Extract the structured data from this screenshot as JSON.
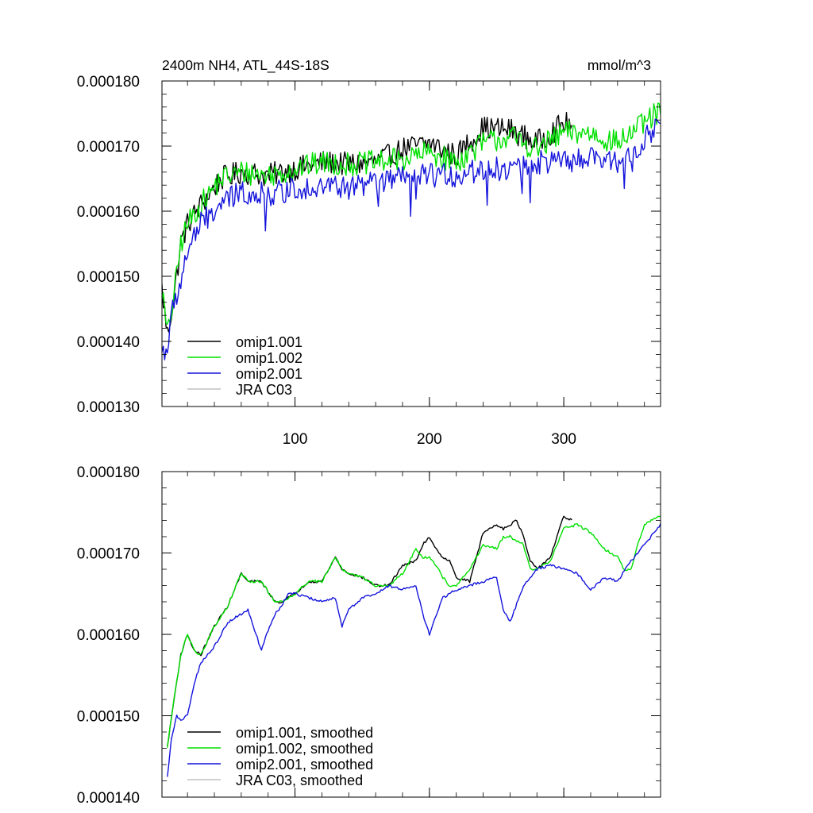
{
  "chart_data": [
    {
      "type": "line",
      "title": "2400m NH4, ATL_44S-18S",
      "units": "mmol/m^3",
      "xlim": [
        1,
        372
      ],
      "ylim": [
        0.00013,
        0.00018
      ],
      "x_ticks": [
        100,
        200,
        300
      ],
      "x_tick_labels": [
        "100",
        "200",
        "300"
      ],
      "y_ticks": [
        0.00013,
        0.00014,
        0.00015,
        0.00016,
        0.00017,
        0.00018
      ],
      "y_tick_labels": [
        "0.000130",
        "0.000140",
        "0.000150",
        "0.000160",
        "0.000170",
        "0.000180"
      ],
      "legend_position": "bottom-left",
      "series": [
        {
          "name": "omip1.001",
          "color": "#000000",
          "style": "noisy",
          "x": [
            1,
            5,
            10,
            15,
            20,
            30,
            45,
            60,
            80,
            100,
            120,
            140,
            160,
            180,
            200,
            220,
            240,
            260,
            280,
            300,
            306
          ],
          "y": [
            0.000148,
            0.000141,
            0.000147,
            0.000155,
            0.000158,
            0.000161,
            0.000165,
            0.000166,
            0.0001655,
            0.0001665,
            0.0001675,
            0.0001672,
            0.0001675,
            0.0001695,
            0.0001705,
            0.0001685,
            0.0001728,
            0.0001725,
            0.0001705,
            0.0001735,
            0.000173
          ]
        },
        {
          "name": "omip1.002",
          "color": "#00e000",
          "style": "noisy",
          "x": [
            1,
            5,
            10,
            15,
            20,
            30,
            45,
            60,
            80,
            100,
            120,
            140,
            160,
            180,
            200,
            220,
            240,
            260,
            280,
            300,
            320,
            340,
            360,
            372
          ],
          "y": [
            0.000148,
            0.000141,
            0.000147,
            0.000155,
            0.000158,
            0.000161,
            0.000165,
            0.000166,
            0.0001655,
            0.0001665,
            0.0001675,
            0.0001672,
            0.0001675,
            0.000168,
            0.000169,
            0.0001675,
            0.0001705,
            0.0001715,
            0.0001695,
            0.000172,
            0.000172,
            0.0001705,
            0.0001735,
            0.0001755
          ]
        },
        {
          "name": "omip2.001",
          "color": "#1414dc",
          "style": "noisy",
          "x": [
            1,
            5,
            10,
            15,
            20,
            30,
            45,
            60,
            80,
            100,
            120,
            140,
            160,
            180,
            200,
            220,
            240,
            260,
            280,
            300,
            320,
            340,
            360,
            372
          ],
          "y": [
            0.0001385,
            0.000139,
            0.000146,
            0.000149,
            0.000154,
            0.000158,
            0.000161,
            0.000163,
            0.0001625,
            0.0001635,
            0.000164,
            0.0001635,
            0.0001645,
            0.000165,
            0.0001655,
            0.0001655,
            0.0001665,
            0.0001665,
            0.0001675,
            0.0001675,
            0.000168,
            0.0001675,
            0.000171,
            0.0001735
          ]
        },
        {
          "name": "JRA C03",
          "color": "#c0c0c0",
          "style": "noisy",
          "x": [],
          "y": []
        }
      ]
    },
    {
      "type": "line",
      "title": "",
      "xlim": [
        1,
        372
      ],
      "ylim": [
        0.00014,
        0.00018
      ],
      "x_ticks": [
        100,
        200,
        300
      ],
      "y_ticks": [
        0.00014,
        0.00015,
        0.00016,
        0.00017,
        0.00018
      ],
      "y_tick_labels": [
        "0.000140",
        "0.000150",
        "0.000160",
        "0.000170",
        "0.000180"
      ],
      "legend_position": "bottom-left",
      "series": [
        {
          "name": "omip1.001, smoothed",
          "color": "#000000",
          "style": "smooth",
          "x": [
            5,
            10,
            15,
            20,
            25,
            30,
            40,
            50,
            60,
            65,
            75,
            85,
            90,
            95,
            100,
            110,
            120,
            125,
            130,
            135,
            140,
            150,
            160,
            170,
            180,
            190,
            195,
            200,
            205,
            210,
            215,
            220,
            230,
            240,
            250,
            255,
            260,
            265,
            270,
            275,
            280,
            290,
            300,
            306
          ],
          "y": [
            0.0001462,
            0.000152,
            0.0001575,
            0.00016,
            0.000158,
            0.0001575,
            0.000161,
            0.0001635,
            0.0001675,
            0.0001665,
            0.0001665,
            0.000164,
            0.000164,
            0.0001645,
            0.000165,
            0.0001665,
            0.0001665,
            0.000168,
            0.0001695,
            0.000168,
            0.0001675,
            0.000167,
            0.000166,
            0.000166,
            0.0001685,
            0.000169,
            0.000171,
            0.000172,
            0.0001705,
            0.0001695,
            0.000169,
            0.000167,
            0.0001665,
            0.0001725,
            0.0001735,
            0.000173,
            0.0001735,
            0.000174,
            0.000172,
            0.000169,
            0.000168,
            0.0001695,
            0.0001745,
            0.000174
          ]
        },
        {
          "name": "omip1.002, smoothed",
          "color": "#00e000",
          "style": "smooth",
          "x": [
            5,
            10,
            15,
            20,
            25,
            30,
            40,
            50,
            60,
            65,
            75,
            85,
            90,
            95,
            100,
            110,
            120,
            125,
            130,
            135,
            140,
            150,
            160,
            170,
            180,
            190,
            195,
            200,
            205,
            210,
            215,
            220,
            230,
            240,
            250,
            255,
            260,
            265,
            270,
            275,
            280,
            290,
            300,
            310,
            320,
            330,
            340,
            345,
            350,
            355,
            360,
            365,
            372
          ],
          "y": [
            0.0001462,
            0.000152,
            0.0001575,
            0.00016,
            0.000158,
            0.0001575,
            0.000161,
            0.0001635,
            0.0001675,
            0.0001665,
            0.0001665,
            0.000164,
            0.000164,
            0.0001645,
            0.000165,
            0.0001665,
            0.0001665,
            0.000168,
            0.0001695,
            0.000168,
            0.0001675,
            0.000167,
            0.000166,
            0.000166,
            0.0001675,
            0.0001705,
            0.0001695,
            0.0001695,
            0.0001685,
            0.000167,
            0.000166,
            0.000166,
            0.000168,
            0.000171,
            0.0001705,
            0.000172,
            0.000172,
            0.0001715,
            0.000171,
            0.000168,
            0.000168,
            0.000169,
            0.000173,
            0.0001735,
            0.0001725,
            0.0001705,
            0.0001695,
            0.000168,
            0.000168,
            0.000171,
            0.0001735,
            0.000174,
            0.0001745
          ]
        },
        {
          "name": "omip2.001, smoothed",
          "color": "#1414dc",
          "style": "smooth",
          "x": [
            5,
            8,
            12,
            15,
            20,
            25,
            30,
            40,
            50,
            60,
            65,
            70,
            75,
            80,
            85,
            90,
            95,
            100,
            110,
            120,
            130,
            135,
            140,
            150,
            160,
            170,
            180,
            190,
            195,
            200,
            210,
            220,
            230,
            240,
            250,
            255,
            260,
            270,
            280,
            290,
            300,
            310,
            320,
            330,
            340,
            350,
            360,
            372
          ],
          "y": [
            0.0001425,
            0.000147,
            0.00015,
            0.0001495,
            0.00015,
            0.000154,
            0.0001565,
            0.0001585,
            0.0001615,
            0.0001625,
            0.000163,
            0.0001605,
            0.000158,
            0.0001605,
            0.0001625,
            0.0001635,
            0.000165,
            0.000165,
            0.0001645,
            0.000164,
            0.0001645,
            0.000161,
            0.000163,
            0.0001645,
            0.000165,
            0.000166,
            0.0001655,
            0.000166,
            0.0001625,
            0.00016,
            0.0001645,
            0.0001655,
            0.000166,
            0.0001665,
            0.000167,
            0.000163,
            0.0001615,
            0.000166,
            0.000168,
            0.0001685,
            0.000168,
            0.0001675,
            0.0001655,
            0.000167,
            0.0001665,
            0.000169,
            0.000171,
            0.0001735
          ]
        },
        {
          "name": "JRA C03, smoothed",
          "color": "#c0c0c0",
          "style": "smooth",
          "x": [],
          "y": []
        }
      ]
    }
  ]
}
